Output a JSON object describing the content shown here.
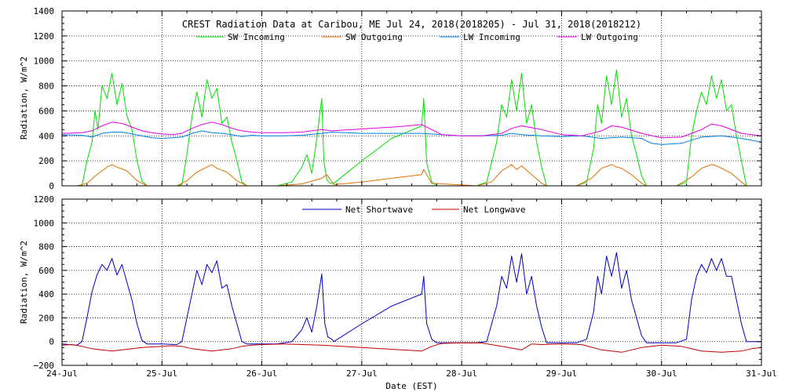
{
  "chart_data": [
    {
      "type": "line",
      "title": "CREST Radiation Data at Caribou, ME   Jul 24, 2018(2018205) - Jul 31, 2018(2018212)",
      "ylabel": "Radiation, W/m^2",
      "xlabel": "",
      "xlim": [
        0,
        7
      ],
      "ylim": [
        0,
        1400
      ],
      "yticks": [
        0,
        200,
        400,
        600,
        800,
        1000,
        1200,
        1400
      ],
      "x_ticklabels": [
        "24-Jul",
        "25-Jul",
        "26-Jul",
        "27-Jul",
        "28-Jul",
        "29-Jul",
        "30-Jul",
        "31-Jul"
      ],
      "grid": true,
      "legend_position": "top",
      "series": [
        {
          "name": "SW Incoming",
          "color": "#00e000",
          "x": [
            0.15,
            0.2,
            0.25,
            0.3,
            0.33,
            0.36,
            0.4,
            0.45,
            0.5,
            0.55,
            0.6,
            0.65,
            0.7,
            0.75,
            0.8,
            0.85,
            1.15,
            1.2,
            1.25,
            1.3,
            1.35,
            1.4,
            1.45,
            1.5,
            1.55,
            1.6,
            1.65,
            1.7,
            1.75,
            1.8,
            1.85,
            2.15,
            2.3,
            2.4,
            2.45,
            2.5,
            2.55,
            2.6,
            2.62,
            2.65,
            2.68,
            2.72,
            3.0,
            3.3,
            3.6,
            3.62,
            3.65,
            3.7,
            3.75,
            4.15,
            4.25,
            4.35,
            4.4,
            4.45,
            4.5,
            4.55,
            4.6,
            4.65,
            4.7,
            4.75,
            4.8,
            4.85,
            5.15,
            5.25,
            5.32,
            5.36,
            5.4,
            5.45,
            5.5,
            5.55,
            5.6,
            5.65,
            5.7,
            5.75,
            5.8,
            5.85,
            6.15,
            6.25,
            6.3,
            6.35,
            6.4,
            6.45,
            6.5,
            6.55,
            6.6,
            6.65,
            6.7,
            6.75,
            6.8,
            6.85
          ],
          "values": [
            0,
            5,
            200,
            350,
            600,
            450,
            800,
            700,
            900,
            650,
            820,
            560,
            450,
            200,
            40,
            0,
            0,
            10,
            250,
            550,
            750,
            550,
            850,
            700,
            780,
            500,
            550,
            350,
            200,
            30,
            0,
            0,
            30,
            150,
            250,
            100,
            380,
            700,
            200,
            50,
            20,
            20,
            200,
            380,
            480,
            700,
            180,
            30,
            0,
            0,
            30,
            350,
            650,
            550,
            850,
            600,
            900,
            500,
            650,
            350,
            150,
            0,
            0,
            30,
            300,
            650,
            500,
            880,
            650,
            930,
            550,
            700,
            400,
            250,
            80,
            0,
            0,
            30,
            400,
            600,
            750,
            650,
            880,
            700,
            850,
            600,
            650,
            400,
            200,
            0
          ]
        },
        {
          "name": "SW Outgoing",
          "color": "#e07000",
          "x": [
            0.15,
            0.25,
            0.35,
            0.45,
            0.5,
            0.55,
            0.65,
            0.75,
            0.85,
            1.15,
            1.25,
            1.35,
            1.45,
            1.5,
            1.55,
            1.65,
            1.75,
            1.85,
            2.15,
            2.4,
            2.6,
            2.65,
            2.72,
            3.0,
            3.3,
            3.6,
            3.62,
            3.7,
            4.15,
            4.3,
            4.4,
            4.5,
            4.55,
            4.6,
            4.7,
            4.8,
            4.85,
            5.15,
            5.3,
            5.4,
            5.5,
            5.55,
            5.6,
            5.7,
            5.8,
            5.85,
            6.15,
            6.3,
            6.4,
            6.5,
            6.55,
            6.6,
            6.7,
            6.8,
            6.85
          ],
          "values": [
            0,
            20,
            90,
            150,
            170,
            150,
            120,
            40,
            0,
            0,
            40,
            110,
            150,
            170,
            140,
            110,
            40,
            0,
            0,
            15,
            60,
            90,
            10,
            30,
            60,
            90,
            130,
            20,
            0,
            30,
            120,
            170,
            130,
            160,
            90,
            20,
            0,
            0,
            60,
            140,
            170,
            150,
            140,
            90,
            20,
            0,
            0,
            70,
            140,
            170,
            160,
            140,
            100,
            30,
            0
          ]
        },
        {
          "name": "LW Incoming",
          "color": "#0080e0",
          "x": [
            0,
            0.2,
            0.3,
            0.4,
            0.5,
            0.6,
            0.7,
            0.8,
            0.9,
            1.0,
            1.1,
            1.2,
            1.3,
            1.4,
            1.5,
            1.6,
            1.7,
            1.8,
            1.9,
            2.0,
            2.2,
            2.4,
            2.6,
            2.7,
            3.0,
            3.4,
            3.6,
            3.8,
            4.0,
            4.2,
            4.4,
            4.5,
            4.6,
            4.8,
            5.0,
            5.2,
            5.4,
            5.6,
            5.8,
            5.9,
            6.0,
            6.2,
            6.4,
            6.6,
            6.8,
            7.0
          ],
          "values": [
            410,
            405,
            390,
            420,
            430,
            430,
            415,
            400,
            385,
            380,
            385,
            390,
            420,
            440,
            425,
            420,
            410,
            395,
            405,
            400,
            400,
            405,
            420,
            430,
            420,
            420,
            420,
            410,
            400,
            400,
            405,
            420,
            410,
            400,
            395,
            400,
            380,
            390,
            380,
            340,
            330,
            340,
            390,
            400,
            380,
            350
          ]
        },
        {
          "name": "LW Outgoing",
          "color": "#e000e0",
          "x": [
            0,
            0.2,
            0.3,
            0.4,
            0.5,
            0.6,
            0.7,
            0.8,
            0.9,
            1.0,
            1.1,
            1.2,
            1.3,
            1.4,
            1.5,
            1.6,
            1.7,
            1.8,
            1.9,
            2.0,
            2.2,
            2.4,
            2.6,
            2.7,
            3.0,
            3.4,
            3.6,
            3.8,
            4.0,
            4.2,
            4.4,
            4.5,
            4.6,
            4.8,
            5.0,
            5.2,
            5.4,
            5.5,
            5.6,
            5.8,
            6.0,
            6.2,
            6.4,
            6.5,
            6.6,
            6.8,
            7.0
          ],
          "values": [
            420,
            425,
            440,
            480,
            510,
            500,
            470,
            440,
            425,
            415,
            410,
            420,
            460,
            490,
            510,
            490,
            460,
            440,
            430,
            425,
            425,
            430,
            450,
            440,
            455,
            475,
            490,
            410,
            400,
            400,
            420,
            460,
            480,
            450,
            410,
            400,
            440,
            480,
            470,
            420,
            385,
            390,
            450,
            495,
            480,
            420,
            400
          ]
        }
      ]
    },
    {
      "type": "line",
      "title": "",
      "ylabel": "Radiation, W/m^2",
      "xlabel": "Date (EST)",
      "xlim": [
        0,
        7
      ],
      "ylim": [
        -200,
        1200
      ],
      "yticks": [
        -200,
        0,
        200,
        400,
        600,
        800,
        1000,
        1200
      ],
      "x_ticklabels": [
        "24-Jul",
        "25-Jul",
        "26-Jul",
        "27-Jul",
        "28-Jul",
        "29-Jul",
        "30-Jul",
        "31-Jul"
      ],
      "grid": true,
      "legend_position": "top",
      "series": [
        {
          "name": "Net Shortwave",
          "color": "#0000c0",
          "x": [
            0.0,
            0.15,
            0.2,
            0.25,
            0.3,
            0.35,
            0.4,
            0.45,
            0.5,
            0.55,
            0.6,
            0.65,
            0.7,
            0.75,
            0.8,
            0.85,
            1.0,
            1.15,
            1.2,
            1.25,
            1.3,
            1.35,
            1.4,
            1.45,
            1.5,
            1.55,
            1.6,
            1.65,
            1.7,
            1.75,
            1.8,
            1.85,
            2.0,
            2.15,
            2.3,
            2.4,
            2.45,
            2.5,
            2.55,
            2.6,
            2.63,
            2.66,
            2.7,
            2.72,
            3.0,
            3.3,
            3.6,
            3.62,
            3.65,
            3.7,
            3.75,
            4.0,
            4.15,
            4.25,
            4.35,
            4.4,
            4.45,
            4.5,
            4.55,
            4.6,
            4.65,
            4.7,
            4.75,
            4.8,
            4.85,
            5.0,
            5.15,
            5.25,
            5.32,
            5.36,
            5.4,
            5.45,
            5.5,
            5.55,
            5.6,
            5.65,
            5.7,
            5.75,
            5.8,
            5.85,
            6.0,
            6.15,
            6.25,
            6.3,
            6.35,
            6.4,
            6.45,
            6.5,
            6.55,
            6.6,
            6.65,
            6.7,
            6.75,
            6.8,
            6.85,
            7.0
          ],
          "values": [
            -20,
            -30,
            0,
            200,
            420,
            560,
            650,
            600,
            700,
            560,
            650,
            500,
            350,
            150,
            10,
            -20,
            -20,
            -25,
            0,
            200,
            400,
            600,
            480,
            650,
            580,
            680,
            450,
            480,
            300,
            150,
            0,
            -20,
            -20,
            -20,
            0,
            100,
            200,
            80,
            300,
            570,
            150,
            40,
            20,
            0,
            150,
            300,
            400,
            550,
            150,
            20,
            -10,
            -10,
            -10,
            0,
            300,
            550,
            450,
            720,
            500,
            740,
            400,
            550,
            300,
            120,
            -10,
            -10,
            -10,
            20,
            250,
            550,
            400,
            720,
            550,
            750,
            450,
            600,
            350,
            200,
            50,
            -10,
            -10,
            -10,
            20,
            350,
            550,
            650,
            580,
            700,
            600,
            700,
            550,
            550,
            350,
            150,
            0,
            0
          ]
        },
        {
          "name": "Net Longwave",
          "color": "#c00000",
          "x": [
            0.0,
            0.1,
            0.2,
            0.3,
            0.4,
            0.5,
            0.6,
            0.7,
            0.8,
            0.9,
            1.0,
            1.1,
            1.2,
            1.3,
            1.4,
            1.5,
            1.6,
            1.7,
            1.8,
            1.9,
            2.0,
            2.2,
            2.4,
            2.6,
            2.8,
            3.0,
            3.2,
            3.4,
            3.6,
            3.7,
            3.8,
            4.0,
            4.2,
            4.4,
            4.6,
            4.7,
            4.8,
            5.0,
            5.2,
            5.4,
            5.6,
            5.8,
            6.0,
            6.2,
            6.4,
            6.6,
            6.8,
            6.9,
            7.0
          ],
          "values": [
            -30,
            -25,
            -40,
            -60,
            -70,
            -80,
            -70,
            -60,
            -50,
            -45,
            -40,
            -35,
            -40,
            -60,
            -70,
            -80,
            -70,
            -60,
            -40,
            -30,
            -25,
            -20,
            -25,
            -30,
            -40,
            -50,
            -60,
            -70,
            -80,
            -40,
            -15,
            -10,
            -12,
            -40,
            -70,
            -20,
            -25,
            -20,
            -25,
            -70,
            -90,
            -50,
            -30,
            -40,
            -80,
            -90,
            -80,
            -60,
            -50
          ]
        }
      ]
    }
  ]
}
